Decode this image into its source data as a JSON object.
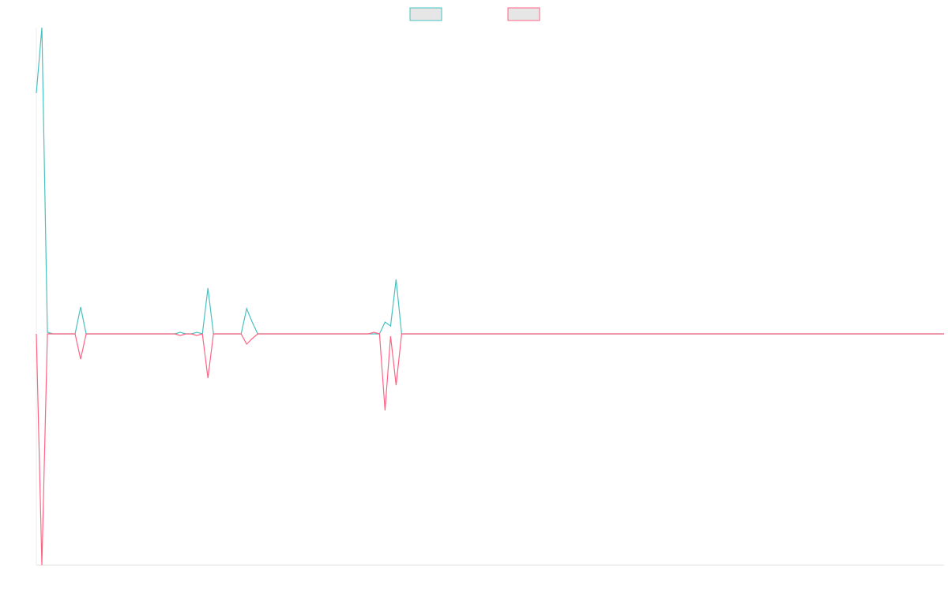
{
  "chart_data": {
    "type": "line",
    "categories": [
      null,
      null,
      null,
      null,
      null,
      null,
      null,
      null,
      null,
      null,
      null,
      null,
      null,
      null,
      null,
      null,
      null,
      null,
      null,
      null,
      null,
      null,
      null,
      null,
      null,
      null,
      null,
      null,
      null,
      null,
      null,
      null,
      null,
      null,
      null,
      null,
      null,
      null,
      null,
      null,
      null,
      null,
      null,
      null,
      null,
      null,
      null,
      null,
      null,
      null,
      null,
      null,
      null,
      null,
      null,
      null,
      null,
      null,
      null,
      null,
      null,
      null,
      null,
      null,
      null,
      null,
      null,
      null,
      null,
      null,
      null,
      null,
      null,
      null,
      null,
      null,
      null,
      null,
      null,
      null,
      null,
      null,
      null,
      null,
      null,
      null,
      null,
      null,
      null,
      null,
      null,
      null,
      null,
      null,
      null,
      null,
      null,
      null,
      null,
      null,
      null,
      null,
      null,
      null,
      null,
      null,
      null,
      null,
      null,
      null,
      null,
      null,
      null,
      null,
      null,
      null,
      null,
      null,
      null,
      null,
      null,
      null,
      null,
      null,
      null,
      null,
      null,
      null,
      null,
      null,
      null,
      null,
      null,
      null,
      null,
      null,
      null,
      null,
      null,
      null,
      null,
      null,
      null,
      null,
      null,
      null,
      null,
      null,
      null,
      null,
      null,
      null,
      null,
      null,
      null,
      null,
      null,
      null,
      null,
      null,
      null,
      null,
      null,
      null,
      null
    ],
    "series": [
      {
        "color": "#4bc0c0",
        "values": [
          305,
          388,
          2,
          0,
          0,
          0,
          0,
          0,
          34,
          0,
          0,
          0,
          0,
          0,
          0,
          0,
          0,
          0,
          0,
          0,
          0,
          0,
          0,
          0,
          0,
          0,
          2,
          0,
          0,
          2,
          0,
          58,
          0,
          0,
          0,
          0,
          0,
          0,
          32,
          15,
          0,
          0,
          0,
          0,
          0,
          0,
          0,
          0,
          0,
          0,
          0,
          0,
          0,
          0,
          0,
          0,
          0,
          0,
          0,
          0,
          0,
          0,
          0,
          15,
          10,
          69,
          0,
          0,
          0,
          0,
          0,
          0,
          0,
          0,
          0,
          0,
          0,
          0,
          0,
          0,
          0,
          0,
          0,
          0,
          0,
          0,
          0,
          0,
          0,
          0,
          0,
          0,
          0,
          0,
          0,
          0,
          0,
          0,
          0,
          0,
          0,
          0,
          0,
          0,
          0,
          0,
          0,
          0,
          0,
          0,
          0,
          0,
          0,
          0,
          0,
          0,
          0,
          0,
          0,
          0,
          0,
          0,
          0,
          0,
          0,
          0,
          0,
          0,
          0,
          0,
          0,
          0,
          0,
          0,
          0,
          0,
          0,
          0,
          0,
          0,
          0,
          0,
          0,
          0,
          0,
          0,
          0,
          0,
          0,
          0,
          0,
          0,
          0,
          0,
          0,
          0,
          0,
          0,
          0,
          0,
          0,
          0,
          0,
          0,
          0
        ]
      },
      {
        "color": "#ff6384",
        "values": [
          0,
          -293,
          0,
          0,
          0,
          0,
          0,
          0,
          -32,
          0,
          0,
          0,
          0,
          0,
          0,
          0,
          0,
          0,
          0,
          0,
          0,
          0,
          0,
          0,
          0,
          0,
          -2,
          0,
          0,
          -2,
          0,
          -56,
          0,
          0,
          0,
          0,
          0,
          0,
          -13,
          -6,
          0,
          0,
          0,
          0,
          0,
          0,
          0,
          0,
          0,
          0,
          0,
          0,
          0,
          0,
          0,
          0,
          0,
          0,
          0,
          0,
          0,
          2,
          0,
          -97,
          -3,
          -65,
          0,
          0,
          0,
          0,
          0,
          0,
          0,
          0,
          0,
          0,
          0,
          0,
          0,
          0,
          0,
          0,
          0,
          0,
          0,
          0,
          0,
          0,
          0,
          0,
          0,
          0,
          0,
          0,
          0,
          0,
          0,
          0,
          0,
          0,
          0,
          0,
          0,
          0,
          0,
          0,
          0,
          0,
          0,
          0,
          0,
          0,
          0,
          0,
          0,
          0,
          0,
          0,
          0,
          0,
          0,
          0,
          0,
          0,
          0,
          0,
          0,
          0,
          0,
          0,
          0,
          0,
          0,
          0,
          0,
          0,
          0,
          0,
          0,
          0,
          0,
          0,
          0,
          0,
          0,
          0,
          0,
          0,
          0,
          0,
          0,
          0,
          0,
          0,
          0,
          0,
          0,
          0,
          0,
          0,
          0,
          0,
          0,
          0,
          0
        ]
      }
    ],
    "ylim": [
      -293,
      388
    ],
    "legend": "top",
    "grid": false
  }
}
